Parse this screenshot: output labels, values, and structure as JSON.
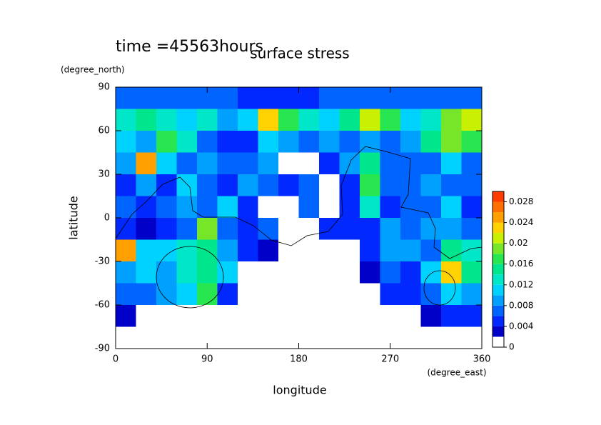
{
  "chart_data": {
    "type": "heatmap",
    "title": "surface stress",
    "annotation": "time =45563hours",
    "x_label": "longitude",
    "x_units": "(degree_east)",
    "y_label": "latitude",
    "y_units": "(degree_north)",
    "xlim": [
      0,
      360
    ],
    "ylim": [
      -90,
      90
    ],
    "xticks": [
      0,
      90,
      180,
      270,
      360
    ],
    "yticks": [
      -90,
      -60,
      -30,
      0,
      30,
      60,
      90
    ],
    "x": [
      10,
      30,
      50,
      70,
      90,
      110,
      130,
      150,
      170,
      190,
      210,
      230,
      250,
      270,
      290,
      310,
      330,
      350
    ],
    "y": [
      82.5,
      67.5,
      52.5,
      37.5,
      22.5,
      7.5,
      -7.5,
      -22.5,
      -37.5,
      -52.5,
      -67.5,
      -82.5
    ],
    "z": [
      [
        0.006,
        0.006,
        0.006,
        0.006,
        0.006,
        0.006,
        0.004,
        0.004,
        0.004,
        0.004,
        0.006,
        0.006,
        0.006,
        0.006,
        0.006,
        0.006,
        0.006,
        0.006
      ],
      [
        0.012,
        0.014,
        0.012,
        0.01,
        0.012,
        0.008,
        0.01,
        0.022,
        0.016,
        0.012,
        0.01,
        0.014,
        0.02,
        0.016,
        0.01,
        0.012,
        0.018,
        0.02
      ],
      [
        0.01,
        0.008,
        0.016,
        0.012,
        0.006,
        0.004,
        0.004,
        0.01,
        0.008,
        0.006,
        0.008,
        0.006,
        0.008,
        0.006,
        0.008,
        0.014,
        0.018,
        0.016
      ],
      [
        0.008,
        0.024,
        0.01,
        0.006,
        0.008,
        0.006,
        0.006,
        0.008,
        0,
        0,
        0.004,
        0.008,
        0.014,
        0.006,
        0.006,
        0.006,
        0.01,
        0.006
      ],
      [
        0.004,
        0.008,
        0.004,
        0.01,
        0.006,
        0.004,
        0.008,
        0.006,
        0.004,
        0.006,
        0,
        0.004,
        0.016,
        0.006,
        0.006,
        0.008,
        0.006,
        0.006
      ],
      [
        0.006,
        0.004,
        0.006,
        0.008,
        0.006,
        0.01,
        0.004,
        0,
        0,
        0.006,
        0,
        0.004,
        0.012,
        0.004,
        0.006,
        0.006,
        0.01,
        0.004
      ],
      [
        0.004,
        0.002,
        0.004,
        0.006,
        0.018,
        0.006,
        0.004,
        0.006,
        0,
        0,
        0.004,
        0.004,
        0.004,
        0.008,
        0.006,
        0.008,
        0.008,
        0.006
      ],
      [
        0.024,
        0.01,
        0.01,
        0.012,
        0.014,
        0.008,
        0.004,
        0.002,
        0,
        0,
        0,
        0,
        0.004,
        0.008,
        0.008,
        0.006,
        0.014,
        0.012
      ],
      [
        0.008,
        0.01,
        0.008,
        0.012,
        0.014,
        0.01,
        0,
        0,
        0,
        0,
        0,
        0,
        0.002,
        0.006,
        0.004,
        0.01,
        0.022,
        0.014
      ],
      [
        0.006,
        0.006,
        0.008,
        0.01,
        0.016,
        0.004,
        0,
        0,
        0,
        0,
        0,
        0,
        0,
        0.004,
        0.004,
        0.006,
        0.01,
        0.008
      ],
      [
        0.002,
        0,
        0,
        0,
        0,
        0,
        0,
        0,
        0,
        0,
        0,
        0,
        0,
        0,
        0,
        0.002,
        0.004,
        0.004
      ],
      [
        0,
        0,
        0,
        0,
        0,
        0,
        0,
        0,
        0,
        0,
        0,
        0,
        0,
        0,
        0,
        0,
        0,
        0
      ]
    ],
    "levels": [
      0,
      0.002,
      0.004,
      0.006,
      0.008,
      0.01,
      0.012,
      0.014,
      0.016,
      0.018,
      0.02,
      0.022,
      0.024,
      0.026,
      0.028,
      0.03
    ],
    "colors": [
      "#ffffff",
      "#0000c8",
      "#0028ff",
      "#0064ff",
      "#00a0ff",
      "#00d2ff",
      "#00e6c8",
      "#00e68c",
      "#28e650",
      "#78e628",
      "#c8f000",
      "#ffd200",
      "#ffa000",
      "#ff6e00",
      "#ff3c00"
    ],
    "cticks": [
      0,
      0.004,
      0.008,
      0.012,
      0.016,
      0.02,
      0.024,
      0.028
    ]
  }
}
